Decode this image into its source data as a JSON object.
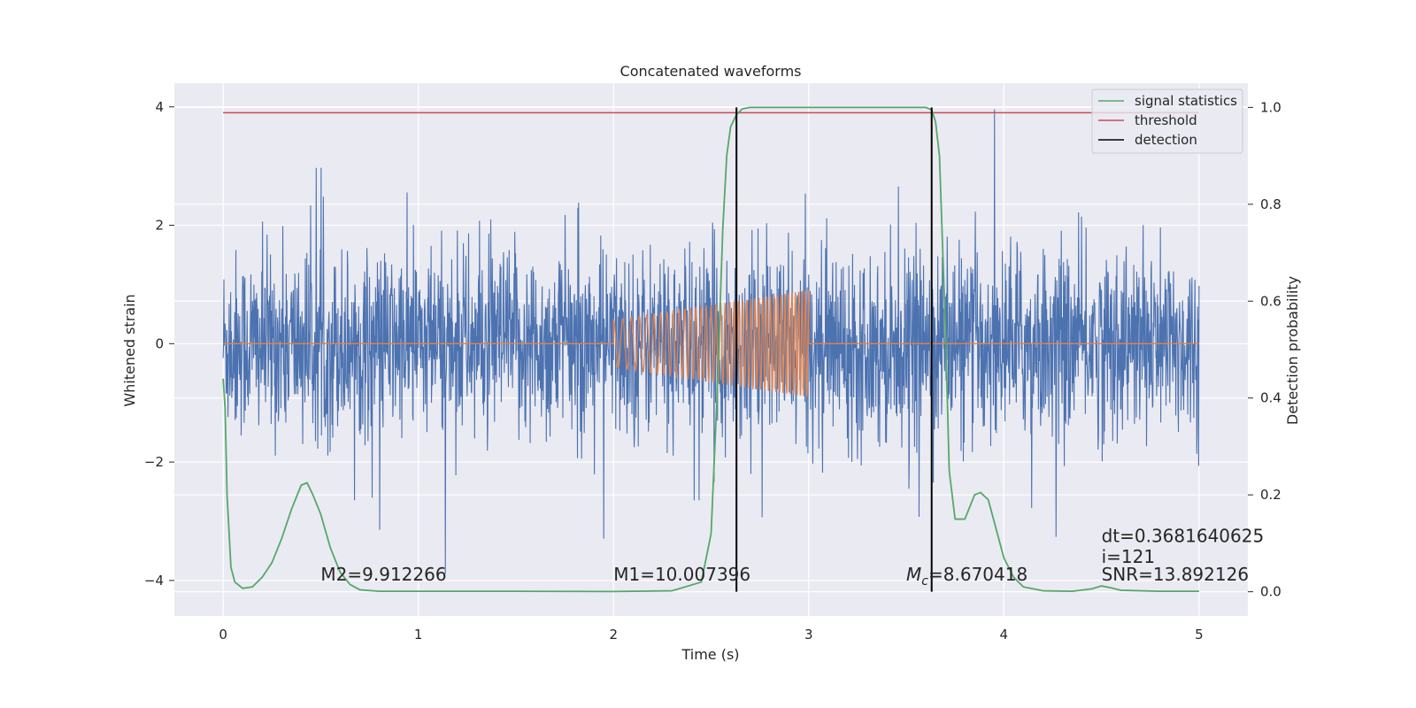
{
  "chart_data": {
    "type": "line",
    "title": "Concatenated waveforms",
    "xlabel": "Time (s)",
    "ylabel_left": "Whitened strain",
    "ylabel_right": "Detection probability",
    "xlim": [
      -0.25,
      5.25
    ],
    "ylim_left": [
      -4.6,
      4.4
    ],
    "ylim_right": [
      -0.05,
      1.05
    ],
    "xticks": [
      0,
      1,
      2,
      3,
      4,
      5
    ],
    "xtick_labels": [
      "0",
      "1",
      "2",
      "3",
      "4",
      "5"
    ],
    "yticks_left": [
      -4,
      -2,
      0,
      2,
      4
    ],
    "ytick_labels_left": [
      "−4",
      "−2",
      "0",
      "2",
      "4"
    ],
    "yticks_right": [
      0.0,
      0.2,
      0.4,
      0.6,
      0.8,
      1.0
    ],
    "ytick_labels_right": [
      "0.0",
      "0.2",
      "0.4",
      "0.6",
      "0.8",
      "1.0"
    ],
    "grid": true,
    "legend_position": "top-right",
    "colors": {
      "background": "#eaeaf2",
      "grid": "#ffffff",
      "whitened_strain": "#4c72b0",
      "template_waveform": "#dd8452",
      "signal_statistics": "#55a868",
      "threshold": "#c44e52",
      "detection": "#000000"
    },
    "series": [
      {
        "name": "signal statistics",
        "axis": "right",
        "x": [
          0.0,
          0.01,
          0.02,
          0.04,
          0.06,
          0.1,
          0.15,
          0.2,
          0.25,
          0.3,
          0.35,
          0.4,
          0.43,
          0.46,
          0.5,
          0.55,
          0.6,
          0.65,
          0.7,
          0.8,
          1.0,
          1.5,
          2.0,
          2.3,
          2.45,
          2.5,
          2.53,
          2.56,
          2.58,
          2.6,
          2.63,
          2.66,
          2.7,
          2.8,
          3.0,
          3.3,
          3.6,
          3.63,
          3.65,
          3.67,
          3.7,
          3.72,
          3.75,
          3.8,
          3.85,
          3.88,
          3.92,
          3.96,
          4.0,
          4.05,
          4.1,
          4.2,
          4.35,
          4.45,
          4.5,
          4.55,
          4.6,
          4.8,
          5.0
        ],
        "values": [
          0.44,
          0.38,
          0.2,
          0.05,
          0.02,
          0.007,
          0.01,
          0.03,
          0.06,
          0.11,
          0.17,
          0.22,
          0.225,
          0.2,
          0.16,
          0.09,
          0.04,
          0.015,
          0.004,
          0.001,
          0.001,
          0.001,
          0.0005,
          0.002,
          0.02,
          0.12,
          0.4,
          0.75,
          0.9,
          0.96,
          0.985,
          0.997,
          1.0,
          1.0,
          1.0,
          1.0,
          1.0,
          0.995,
          0.97,
          0.9,
          0.55,
          0.25,
          0.15,
          0.15,
          0.2,
          0.205,
          0.19,
          0.13,
          0.07,
          0.03,
          0.01,
          0.002,
          0.001,
          0.006,
          0.012,
          0.008,
          0.003,
          0.001,
          0.001
        ]
      },
      {
        "name": "threshold",
        "axis": "right",
        "x": [
          0,
          5
        ],
        "values": [
          0.989,
          0.989
        ]
      },
      {
        "name": "detection",
        "axis": "right",
        "x_lines": [
          2.63,
          3.63
        ],
        "range": [
          0.0,
          1.0
        ]
      },
      {
        "name": "",
        "axis": "left",
        "kind": "noise",
        "x": [
          0,
          5
        ],
        "typical_abs_max": 2.2,
        "extreme_max": 4.0,
        "extreme_min": -4.2
      },
      {
        "name": "",
        "axis": "left",
        "kind": "chirp",
        "x": [
          2.0,
          3.0
        ],
        "amplitude_start": 0.4,
        "amplitude_end": 0.9,
        "baseline": 0
      }
    ],
    "annotations": [
      {
        "text": "M2=9.912266",
        "x": 0.5,
        "y": -4.0
      },
      {
        "text": "M1=10.007396",
        "x": 2.0,
        "y": -4.0
      },
      {
        "text": "M",
        "sub": "c",
        "rest": "=8.670418",
        "x": 3.5,
        "y": -4.0
      },
      {
        "text": "dt=0.3681640625",
        "x": 4.5,
        "y": -3.35
      },
      {
        "text": " i=121",
        "x": 4.5,
        "y": -3.7
      },
      {
        "text": "SNR=13.892126",
        "x": 4.5,
        "y": -4.0
      }
    ]
  }
}
